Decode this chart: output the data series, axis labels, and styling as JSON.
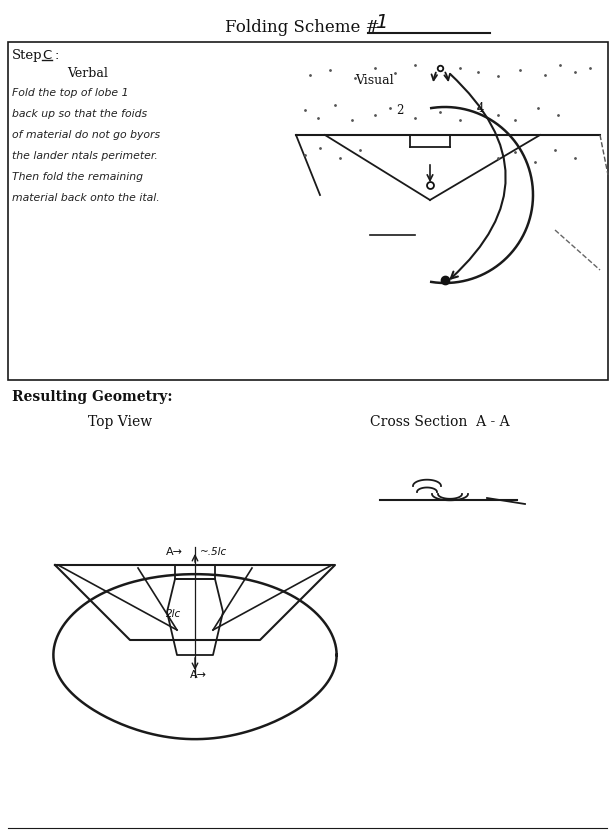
{
  "title_text": "Folding Scheme # ",
  "title_num": "1",
  "step_label": "Step",
  "step_letter": "C",
  "verbal_label": "Verbal",
  "visual_label": "Visual",
  "verbal_lines": [
    "Fold the top of lobe 1",
    "back up so that the foids",
    "of material do not go byors",
    "the lander ntals perimeter.",
    "Then fold the remaining",
    "material back onto the ital."
  ],
  "resulting_label": "Resulting Geometry:",
  "top_view_label": "Top View",
  "cross_section_label": "Cross Section  A - A",
  "bg_color": "#ffffff",
  "lc": "#1a1a1a"
}
